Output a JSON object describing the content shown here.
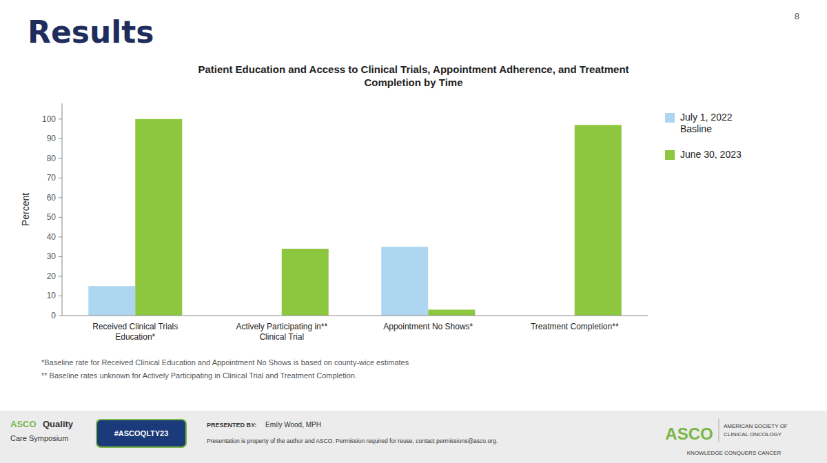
{
  "heading": "Results",
  "page_number": "8",
  "footer": [
    "ASCO",
    "Quality",
    "Care Symposium",
    "#ASCOQLTY23",
    "PRESENTED BY:",
    "Emily Wood, MPH",
    "Presentation is property of the author and ASCO. Permission required for reuse, contact permissions@asco.org.",
    "ASCO",
    "AMERICAN SOCIETY OF",
    "CLINICAL ONCOLOGY",
    "KNOWLEDGE CONQUERS CANCER"
  ],
  "chart_data": {
    "type": "bar",
    "title": "Patient Education and Access to Clinical Trials, Appointment Adherence, and Treatment\nCompletion by Time",
    "categories": [
      "Received Clinical Trials\nEducation*",
      "Actively Participating in**\nClinical Trial",
      "Appointment No Shows*",
      "Treatment Completion**"
    ],
    "series": [
      {
        "name": "July 1, 2022\nBasline",
        "color": "#aed6f1",
        "values": [
          15,
          null,
          35,
          null
        ]
      },
      {
        "name": "June 30, 2023",
        "color": "#8dc63f",
        "values": [
          100,
          34,
          3,
          97
        ]
      }
    ],
    "ylabel": "Percent",
    "ylim": [
      0,
      108
    ],
    "yticks": [
      0,
      10,
      20,
      30,
      40,
      50,
      60,
      70,
      80,
      90,
      100
    ],
    "grid": false,
    "legend": "right",
    "annotations": [
      "*Baseline rate for Received Clinical Education and Appointment No Shows is based on county-wice estimates",
      "** Baseline rates unknown for Actively Participating in Clinical Trial and Treatment Completion."
    ]
  }
}
